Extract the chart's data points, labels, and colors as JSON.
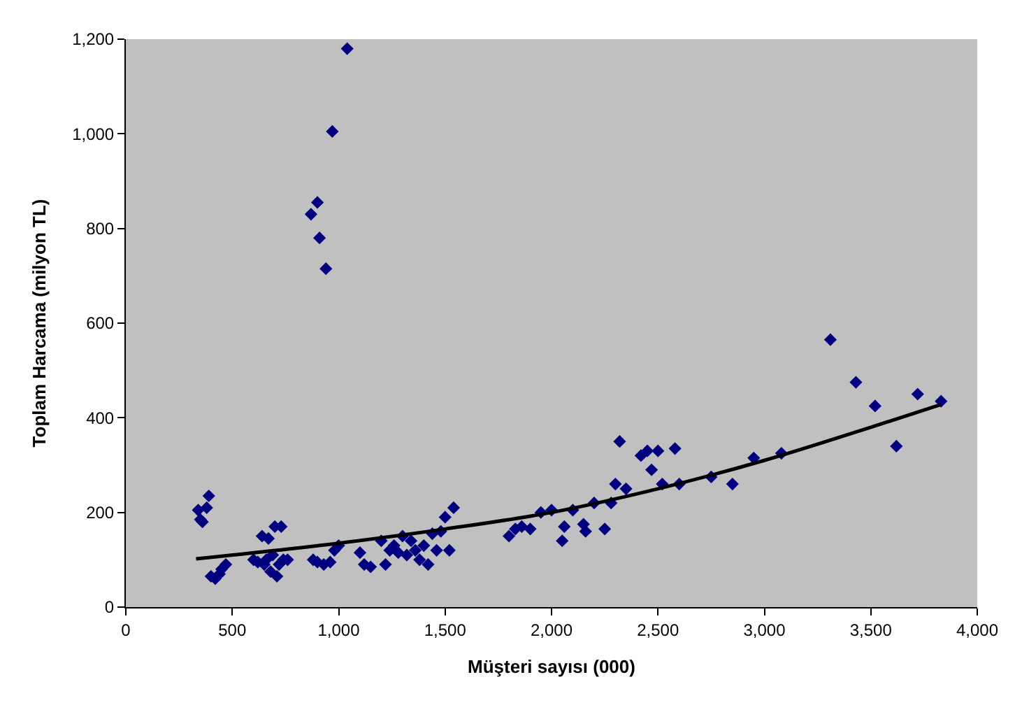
{
  "chart_data": {
    "type": "scatter",
    "xlabel": "Müşteri sayısı (000)",
    "ylabel": "Toplam Harcama (milyon TL)",
    "xlim": [
      0,
      4000
    ],
    "xticks": [
      0,
      {
        "value": 500,
        "label": "500"
      },
      {
        "value": 1000,
        "label": "1,000"
      },
      {
        "value": 1500,
        "label": "1,500"
      },
      {
        "value": 2000,
        "label": "2,000"
      },
      {
        "value": 2500,
        "label": "2,500"
      },
      {
        "value": 3000,
        "label": "3,000"
      },
      {
        "value": 3500,
        "label": "3,500"
      },
      {
        "value": 4000,
        "label": "4,000"
      }
    ],
    "ylim": [
      0,
      1200
    ],
    "yticks": [
      0,
      200,
      400,
      600,
      800,
      {
        "value": 1000,
        "label": "1,000"
      },
      {
        "value": 1200,
        "label": "1,200"
      }
    ],
    "grid": false,
    "marker": "diamond",
    "series": [
      {
        "color": "#000080",
        "x": [
          340,
          350,
          360,
          380,
          390,
          400,
          420,
          440,
          450,
          470,
          600,
          620,
          640,
          650,
          660,
          670,
          680,
          690,
          700,
          710,
          720,
          730,
          740,
          760,
          870,
          900,
          910,
          940,
          970,
          1040,
          880,
          900,
          930,
          960,
          980,
          1000,
          1100,
          1120,
          1150,
          1200,
          1220,
          1240,
          1260,
          1280,
          1300,
          1320,
          1340,
          1360,
          1380,
          1400,
          1420,
          1440,
          1460,
          1480,
          1500,
          1520,
          1540,
          1800,
          1830,
          1860,
          1900,
          1950,
          2000,
          2050,
          2060,
          2100,
          2150,
          2160,
          2200,
          2250,
          2280,
          2300,
          2320,
          2350,
          2420,
          2450,
          2470,
          2500,
          2520,
          2580,
          2600,
          2750,
          2850,
          2950,
          3080,
          3310,
          3430,
          3520,
          3620,
          3720,
          3830
        ],
        "values": [
          205,
          185,
          180,
          210,
          235,
          65,
          60,
          70,
          80,
          90,
          100,
          95,
          150,
          90,
          100,
          145,
          75,
          110,
          170,
          65,
          90,
          170,
          100,
          100,
          830,
          855,
          780,
          715,
          1005,
          1180,
          100,
          95,
          90,
          95,
          120,
          130,
          115,
          90,
          85,
          140,
          90,
          120,
          130,
          115,
          150,
          110,
          140,
          120,
          100,
          130,
          90,
          155,
          120,
          160,
          190,
          120,
          210,
          150,
          165,
          170,
          165,
          200,
          205,
          140,
          170,
          205,
          175,
          160,
          220,
          165,
          220,
          260,
          350,
          250,
          320,
          330,
          290,
          330,
          260,
          335,
          260,
          275,
          260,
          315,
          325,
          565,
          475,
          425,
          340,
          450,
          435
        ]
      },
      {
        "type": "line",
        "color": "#000000",
        "marker": "none",
        "line_style": "solid",
        "x": [
          330,
          1000,
          1500,
          2000,
          2500,
          3000,
          3500,
          3830
        ],
        "values": [
          102,
          135,
          165,
          200,
          250,
          310,
          380,
          428
        ]
      }
    ]
  }
}
